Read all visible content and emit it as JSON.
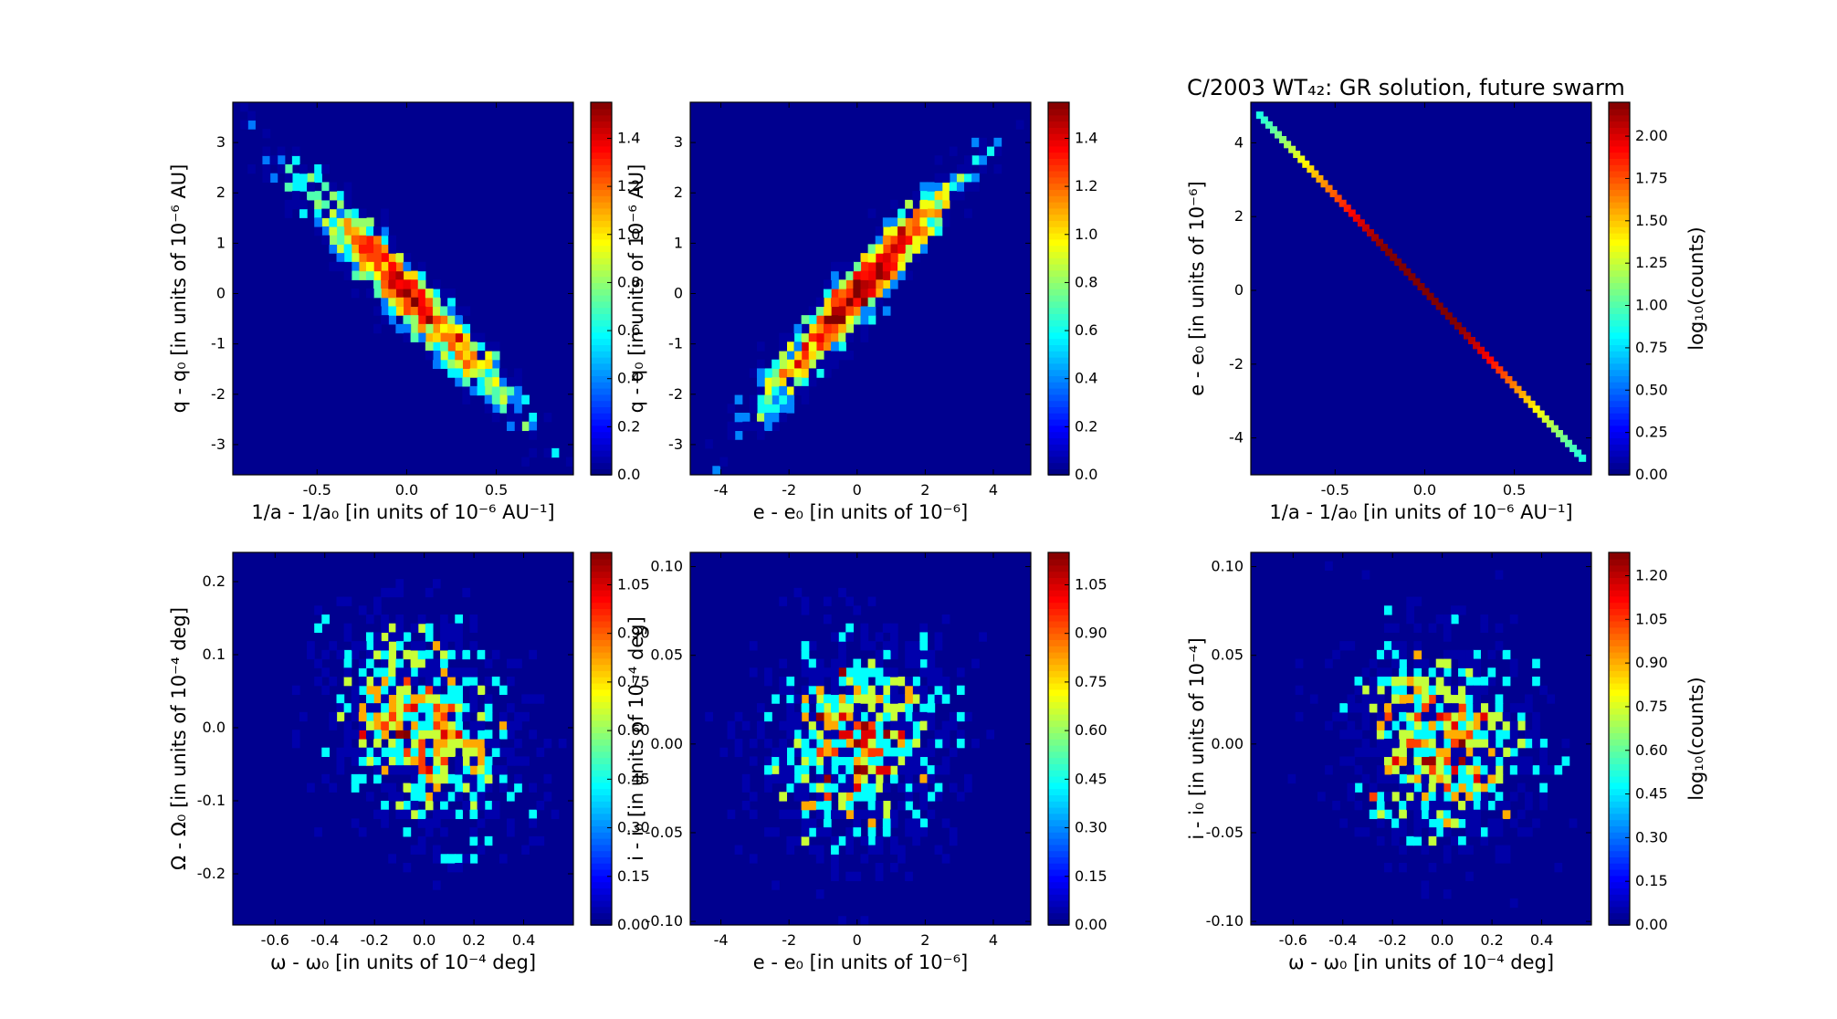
{
  "figure_title": "C/2003 WT₄₂:  GR solution, future swarm",
  "colors": {
    "background": "#00008f",
    "text": "#000000"
  },
  "chart_data": [
    {
      "type": "heatmap",
      "subtype": "hexbin",
      "xlabel": "1/a - 1/a₀ [in units of 10⁻⁶ AU⁻¹]",
      "ylabel": "q - q₀ [in units of 10⁻⁶ AU]",
      "xlim": [
        -0.97,
        0.93
      ],
      "ylim": [
        -3.6,
        3.8
      ],
      "x_ticks": [
        "-0.5",
        "0.0",
        "0.5"
      ],
      "x_tick_values": [
        -0.5,
        0.0,
        0.5
      ],
      "y_ticks": [
        "-3",
        "-2",
        "-1",
        "0",
        "1",
        "2",
        "3"
      ],
      "y_tick_values": [
        -3,
        -2,
        -1,
        0,
        1,
        2,
        3
      ],
      "corr": -0.96,
      "sx": 0.3,
      "sy": 1.15,
      "n": 1500,
      "peak": 1.55,
      "colorbar": {
        "ticks": [
          "0.0",
          "0.2",
          "0.4",
          "0.6",
          "0.8",
          "1.0",
          "1.2",
          "1.4"
        ],
        "values": [
          0.0,
          0.2,
          0.4,
          0.6,
          0.8,
          1.0,
          1.2,
          1.4
        ],
        "min": 0.0,
        "max": 1.55,
        "label": ""
      }
    },
    {
      "type": "heatmap",
      "subtype": "hexbin",
      "xlabel": "e - e₀ [in units of 10⁻⁶]",
      "ylabel": "q - q₀ [in units of 10⁻⁶ AU]",
      "xlim": [
        -4.9,
        5.1
      ],
      "ylim": [
        -3.6,
        3.8
      ],
      "x_ticks": [
        "-4",
        "-2",
        "0",
        "2",
        "4"
      ],
      "x_tick_values": [
        -4,
        -2,
        0,
        2,
        4
      ],
      "y_ticks": [
        "-3",
        "-2",
        "-1",
        "0",
        "1",
        "2",
        "3"
      ],
      "y_tick_values": [
        -3,
        -2,
        -1,
        0,
        1,
        2,
        3
      ],
      "corr": 0.96,
      "sx": 1.45,
      "sy": 1.15,
      "n": 1500,
      "peak": 1.55,
      "colorbar": {
        "ticks": [
          "0.0",
          "0.2",
          "0.4",
          "0.6",
          "0.8",
          "1.0",
          "1.2",
          "1.4"
        ],
        "values": [
          0.0,
          0.2,
          0.4,
          0.6,
          0.8,
          1.0,
          1.2,
          1.4
        ],
        "min": 0.0,
        "max": 1.55,
        "label": ""
      }
    },
    {
      "type": "heatmap",
      "subtype": "hexbin",
      "xlabel": "1/a - 1/a₀ [in units of 10⁻⁶ AU⁻¹]",
      "ylabel": "e - e₀ [in units of 10⁻⁶]",
      "xlim": [
        -0.97,
        0.93
      ],
      "ylim": [
        -5.0,
        5.1
      ],
      "x_ticks": [
        "-0.5",
        "0.0",
        "0.5"
      ],
      "x_tick_values": [
        -0.5,
        0.0,
        0.5
      ],
      "y_ticks": [
        "-4",
        "-2",
        "0",
        "2",
        "4"
      ],
      "y_tick_values": [
        -4,
        -2,
        0,
        2,
        4
      ],
      "line": {
        "x0": -0.92,
        "y0": 4.75,
        "x1": 0.88,
        "y1": -4.55
      },
      "peak": 2.2,
      "colorbar": {
        "ticks": [
          "0.00",
          "0.25",
          "0.50",
          "0.75",
          "1.00",
          "1.25",
          "1.50",
          "1.75",
          "2.00"
        ],
        "values": [
          0.0,
          0.25,
          0.5,
          0.75,
          1.0,
          1.25,
          1.5,
          1.75,
          2.0
        ],
        "min": 0.0,
        "max": 2.2,
        "label": "log₁₀(counts)"
      }
    },
    {
      "type": "heatmap",
      "subtype": "hexbin",
      "xlabel": "ω - ω₀ [in units of 10⁻⁴ deg]",
      "ylabel": "Ω - Ω₀ [in units of 10⁻⁴ deg]",
      "xlim": [
        -0.77,
        0.6
      ],
      "ylim": [
        -0.27,
        0.24
      ],
      "x_ticks": [
        "-0.6",
        "-0.4",
        "-0.2",
        "0.0",
        "0.2",
        "0.4"
      ],
      "x_tick_values": [
        -0.6,
        -0.4,
        -0.2,
        0.0,
        0.2,
        0.4
      ],
      "y_ticks": [
        "-0.2",
        "-0.1",
        "0.0",
        "0.1",
        "0.2"
      ],
      "y_tick_values": [
        -0.2,
        -0.1,
        0.0,
        0.1,
        0.2
      ],
      "corr": -0.3,
      "sx": 0.19,
      "sy": 0.075,
      "n": 900,
      "peak": 1.15,
      "colorbar": {
        "ticks": [
          "0.00",
          "0.15",
          "0.30",
          "0.45",
          "0.60",
          "0.75",
          "0.90",
          "1.05"
        ],
        "values": [
          0.0,
          0.15,
          0.3,
          0.45,
          0.6,
          0.75,
          0.9,
          1.05
        ],
        "min": 0.0,
        "max": 1.15,
        "label": ""
      }
    },
    {
      "type": "heatmap",
      "subtype": "hexbin",
      "xlabel": "e - e₀ [in units of 10⁻⁶]",
      "ylabel": "i - i₀ [in units of 10⁻⁴ deg]",
      "xlim": [
        -4.9,
        5.1
      ],
      "ylim": [
        -0.102,
        0.108
      ],
      "x_ticks": [
        "-4",
        "-2",
        "0",
        "2",
        "4"
      ],
      "x_tick_values": [
        -4,
        -2,
        0,
        2,
        4
      ],
      "y_ticks": [
        "-0.10",
        "-0.05",
        "0.00",
        "0.05",
        "0.10"
      ],
      "y_tick_values": [
        -0.1,
        -0.05,
        0.0,
        0.05,
        0.1
      ],
      "corr": 0.1,
      "sx": 1.45,
      "sy": 0.03,
      "n": 900,
      "peak": 1.15,
      "colorbar": {
        "ticks": [
          "0.00",
          "0.15",
          "0.30",
          "0.45",
          "0.60",
          "0.75",
          "0.90",
          "1.05"
        ],
        "values": [
          0.0,
          0.15,
          0.3,
          0.45,
          0.6,
          0.75,
          0.9,
          1.05
        ],
        "min": 0.0,
        "max": 1.15,
        "label": ""
      }
    },
    {
      "type": "heatmap",
      "subtype": "hexbin",
      "xlabel": "ω - ω₀ [in units of 10⁻⁴ deg]",
      "ylabel": "i - i₀ [in units of 10⁻⁴]",
      "xlim": [
        -0.77,
        0.6
      ],
      "ylim": [
        -0.102,
        0.108
      ],
      "x_ticks": [
        "-0.6",
        "-0.4",
        "-0.2",
        "0.0",
        "0.2",
        "0.4"
      ],
      "x_tick_values": [
        -0.6,
        -0.4,
        -0.2,
        0.0,
        0.2,
        0.4
      ],
      "y_ticks": [
        "-0.10",
        "-0.05",
        "0.00",
        "0.05",
        "0.10"
      ],
      "y_tick_values": [
        -0.1,
        -0.05,
        0.0,
        0.05,
        0.1
      ],
      "corr": -0.1,
      "sx": 0.19,
      "sy": 0.03,
      "n": 900,
      "peak": 1.28,
      "colorbar": {
        "ticks": [
          "0.00",
          "0.15",
          "0.30",
          "0.45",
          "0.60",
          "0.75",
          "0.90",
          "1.05",
          "1.20"
        ],
        "values": [
          0.0,
          0.15,
          0.3,
          0.45,
          0.6,
          0.75,
          0.9,
          1.05,
          1.2
        ],
        "min": 0.0,
        "max": 1.28,
        "label": "log₁₀(counts)"
      }
    }
  ]
}
